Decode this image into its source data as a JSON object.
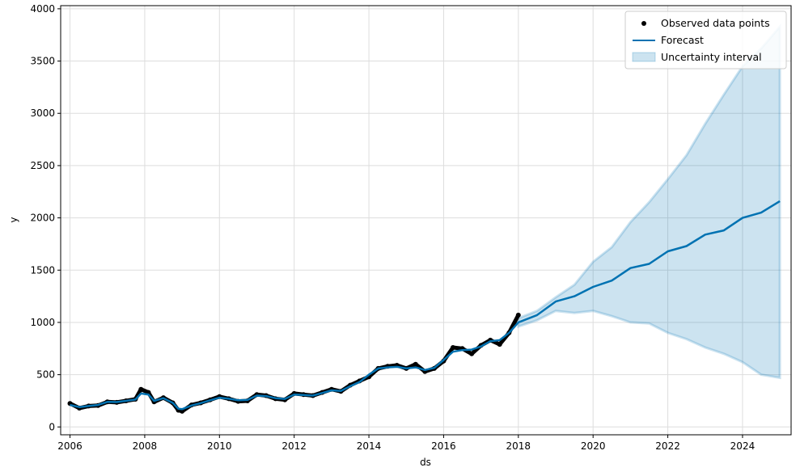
{
  "chart_data": {
    "type": "line",
    "title": "",
    "xlabel": "ds",
    "ylabel": "y",
    "xlim": [
      2005.75,
      2025.3
    ],
    "ylim": [
      -75,
      4030
    ],
    "x_ticks": [
      2006,
      2008,
      2010,
      2012,
      2014,
      2016,
      2018,
      2020,
      2022,
      2024
    ],
    "x_tick_labels": [
      "2006",
      "2008",
      "2010",
      "2012",
      "2014",
      "2016",
      "2018",
      "2020",
      "2022",
      "2024"
    ],
    "y_ticks": [
      0,
      500,
      1000,
      1500,
      2000,
      2500,
      3000,
      3500,
      4000
    ],
    "y_tick_labels": [
      "0",
      "500",
      "1000",
      "1500",
      "2000",
      "2500",
      "3000",
      "3500",
      "4000"
    ],
    "grid": true,
    "legend_position": "top-right",
    "colors": {
      "observed": "#000000",
      "forecast": "#0072B2",
      "uncertainty_fill": "#0072B2",
      "grid": "#dddddd"
    },
    "legend": [
      {
        "label": "Observed data points",
        "kind": "marker"
      },
      {
        "label": "Forecast",
        "kind": "line"
      },
      {
        "label": "Uncertainty interval",
        "kind": "patch"
      }
    ],
    "observed": {
      "name": "Observed data points",
      "x": [
        2006.0,
        2006.25,
        2006.5,
        2006.75,
        2007.0,
        2007.25,
        2007.5,
        2007.75,
        2007.9,
        2008.1,
        2008.25,
        2008.5,
        2008.75,
        2008.9,
        2009.0,
        2009.25,
        2009.5,
        2009.75,
        2010.0,
        2010.25,
        2010.5,
        2010.75,
        2011.0,
        2011.25,
        2011.5,
        2011.75,
        2012.0,
        2012.25,
        2012.5,
        2012.75,
        2013.0,
        2013.25,
        2013.5,
        2013.75,
        2014.0,
        2014.25,
        2014.5,
        2014.75,
        2015.0,
        2015.25,
        2015.5,
        2015.75,
        2016.0,
        2016.25,
        2016.5,
        2016.75,
        2017.0,
        2017.25,
        2017.5,
        2017.75,
        2018.0
      ],
      "y": [
        225,
        180,
        200,
        205,
        240,
        235,
        250,
        265,
        360,
        330,
        240,
        280,
        230,
        160,
        150,
        210,
        230,
        260,
        290,
        270,
        245,
        250,
        310,
        300,
        270,
        260,
        320,
        310,
        300,
        330,
        360,
        340,
        400,
        440,
        480,
        560,
        580,
        590,
        560,
        600,
        530,
        560,
        630,
        760,
        750,
        700,
        780,
        830,
        790,
        900,
        1070
      ]
    },
    "forecast": {
      "name": "Forecast",
      "x": [
        2006.0,
        2006.25,
        2006.5,
        2006.75,
        2007.0,
        2007.25,
        2007.5,
        2007.75,
        2007.9,
        2008.1,
        2008.25,
        2008.5,
        2008.75,
        2008.9,
        2009.0,
        2009.25,
        2009.5,
        2009.75,
        2010.0,
        2010.25,
        2010.5,
        2010.75,
        2011.0,
        2011.25,
        2011.5,
        2011.75,
        2012.0,
        2012.25,
        2012.5,
        2012.75,
        2013.0,
        2013.25,
        2013.5,
        2013.75,
        2014.0,
        2014.25,
        2014.5,
        2014.75,
        2015.0,
        2015.25,
        2015.5,
        2015.75,
        2016.0,
        2016.25,
        2016.5,
        2016.75,
        2017.0,
        2017.25,
        2017.5,
        2017.75,
        2018.0,
        2018.5,
        2019.0,
        2019.5,
        2020.0,
        2020.5,
        2021.0,
        2021.5,
        2022.0,
        2022.5,
        2023.0,
        2023.5,
        2024.0,
        2024.5,
        2025.0
      ],
      "y": [
        210,
        190,
        200,
        210,
        240,
        238,
        250,
        262,
        320,
        310,
        250,
        275,
        230,
        175,
        170,
        205,
        228,
        255,
        280,
        270,
        255,
        258,
        300,
        295,
        275,
        268,
        310,
        305,
        300,
        325,
        350,
        345,
        390,
        430,
        500,
        560,
        570,
        575,
        560,
        570,
        545,
        565,
        640,
        720,
        735,
        740,
        770,
        820,
        830,
        900,
        1000,
        1070,
        1200,
        1250,
        1340,
        1400,
        1520,
        1560,
        1680,
        1730,
        1840,
        1880,
        2000,
        2050,
        2160
      ]
    },
    "uncertainty": {
      "name": "Uncertainty interval",
      "x": [
        2018.0,
        2018.5,
        2019.0,
        2019.5,
        2020.0,
        2020.5,
        2021.0,
        2021.5,
        2022.0,
        2022.5,
        2023.0,
        2023.5,
        2024.0,
        2024.5,
        2025.0
      ],
      "upper": [
        1040,
        1110,
        1240,
        1360,
        1580,
        1720,
        1960,
        2150,
        2370,
        2600,
        2900,
        3180,
        3450,
        3620,
        3830
      ],
      "lower": [
        960,
        1020,
        1110,
        1090,
        1110,
        1060,
        1000,
        990,
        900,
        840,
        760,
        700,
        620,
        500,
        470
      ]
    }
  }
}
